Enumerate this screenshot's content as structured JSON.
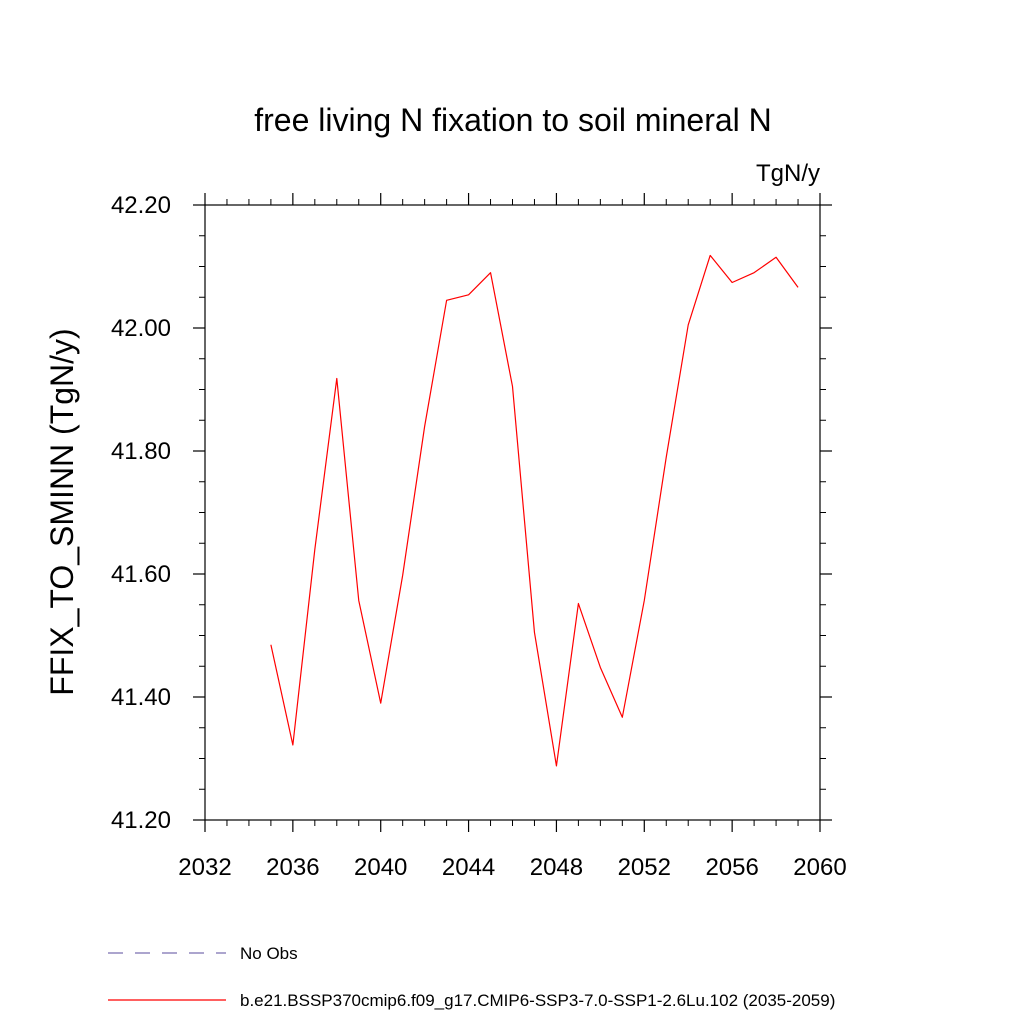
{
  "chart_data": {
    "type": "line",
    "title": "free living N fixation to soil mineral N",
    "units_label": "TgN/y",
    "xlabel": "",
    "ylabel": "FFIX_TO_SMINN  (TgN/y)",
    "xlim": [
      2032,
      2060
    ],
    "ylim": [
      41.2,
      42.2
    ],
    "x_ticks": [
      2032,
      2036,
      2040,
      2044,
      2048,
      2052,
      2056,
      2060
    ],
    "x_tick_labels": [
      "2032",
      "2036",
      "2040",
      "2044",
      "2048",
      "2052",
      "2056",
      "2060"
    ],
    "y_ticks": [
      41.2,
      41.4,
      41.6,
      41.8,
      42.0,
      42.2
    ],
    "y_tick_labels": [
      "41.20",
      "41.40",
      "41.60",
      "41.80",
      "42.00",
      "42.20"
    ],
    "grid": false,
    "legend_position": "bottom-left",
    "series": [
      {
        "name": "b.e21.BSSP370cmip6.f09_g17.CMIP6-SSP3-7.0-SSP1-2.6Lu.102 (2035-2059)",
        "color": "#ff0000",
        "style": "solid",
        "x": [
          2035,
          2036,
          2037,
          2038,
          2039,
          2040,
          2041,
          2042,
          2043,
          2044,
          2045,
          2046,
          2047,
          2048,
          2049,
          2050,
          2051,
          2052,
          2053,
          2054,
          2055,
          2056,
          2057,
          2058,
          2059
        ],
        "y": [
          41.485,
          41.322,
          41.64,
          41.918,
          41.557,
          41.39,
          41.598,
          41.84,
          42.045,
          42.054,
          42.09,
          41.905,
          41.505,
          41.288,
          41.552,
          41.448,
          41.367,
          41.557,
          41.79,
          42.005,
          42.118,
          42.074,
          42.09,
          42.115,
          42.066
        ]
      }
    ],
    "legend": [
      {
        "label": "No Obs",
        "color": "#7b6fb0",
        "style": "dashed"
      },
      {
        "label": "b.e21.BSSP370cmip6.f09_g17.CMIP6-SSP3-7.0-SSP1-2.6Lu.102 (2035-2059)",
        "color": "#ff0000",
        "style": "solid"
      }
    ]
  }
}
